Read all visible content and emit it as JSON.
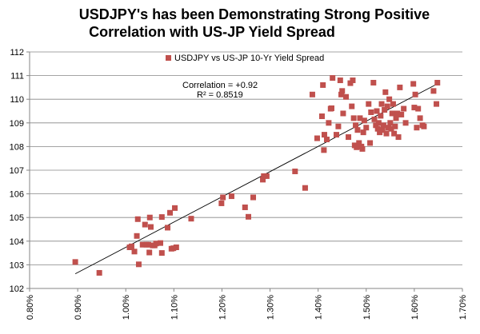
{
  "chart_data": {
    "type": "scatter",
    "title_lines": [
      "USDJPY's has been Demonstrating Strong Positive",
      "Correlation with US-JP Yield Spread"
    ],
    "legend_label": "USDJPY vs US-JP 10-Yr Yield Spread",
    "annotation_lines": [
      "Correlation = +0.92",
      "R² = 0.8519"
    ],
    "xlim": [
      0.008,
      0.017
    ],
    "ylim": [
      102,
      112
    ],
    "x_ticks": [
      0.008,
      0.009,
      0.01,
      0.011,
      0.012,
      0.013,
      0.014,
      0.015,
      0.016,
      0.017
    ],
    "x_tick_labels": [
      "0.80%",
      "0.90%",
      "1.00%",
      "1.10%",
      "1.20%",
      "1.30%",
      "1.40%",
      "1.50%",
      "1.60%",
      "1.70%"
    ],
    "y_ticks": [
      102,
      103,
      104,
      105,
      106,
      107,
      108,
      109,
      110,
      111,
      112
    ],
    "y_tick_labels": [
      "102",
      "103",
      "104",
      "105",
      "106",
      "107",
      "108",
      "109",
      "110",
      "111",
      "112"
    ],
    "trendline": {
      "x": [
        0.00895,
        0.01645
      ],
      "y": [
        102.62,
        110.62
      ]
    },
    "colors": {
      "marker": "#c0504d",
      "grid": "#868686",
      "axis": "#868686",
      "trend": "#000000"
    },
    "points": [
      [
        0.00895,
        103.12
      ],
      [
        0.00945,
        102.66
      ],
      [
        0.01008,
        103.74
      ],
      [
        0.01012,
        103.78
      ],
      [
        0.01018,
        103.56
      ],
      [
        0.01023,
        104.22
      ],
      [
        0.01025,
        104.93
      ],
      [
        0.01027,
        103.02
      ],
      [
        0.01035,
        103.85
      ],
      [
        0.0104,
        104.7
      ],
      [
        0.01043,
        103.85
      ],
      [
        0.01047,
        103.85
      ],
      [
        0.01049,
        103.52
      ],
      [
        0.0105,
        105.0
      ],
      [
        0.01052,
        104.6
      ],
      [
        0.01056,
        103.82
      ],
      [
        0.0106,
        103.82
      ],
      [
        0.01063,
        103.9
      ],
      [
        0.01072,
        103.92
      ],
      [
        0.01075,
        105.02
      ],
      [
        0.01075,
        103.5
      ],
      [
        0.01087,
        104.57
      ],
      [
        0.01092,
        105.2
      ],
      [
        0.01095,
        103.68
      ],
      [
        0.01099,
        103.7
      ],
      [
        0.01102,
        105.4
      ],
      [
        0.01105,
        103.74
      ],
      [
        0.01136,
        104.95
      ],
      [
        0.01199,
        105.6
      ],
      [
        0.01202,
        105.85
      ],
      [
        0.0122,
        105.9
      ],
      [
        0.01248,
        105.43
      ],
      [
        0.01255,
        105.03
      ],
      [
        0.01265,
        105.85
      ],
      [
        0.01285,
        106.6
      ],
      [
        0.01287,
        106.75
      ],
      [
        0.01293,
        106.75
      ],
      [
        0.01352,
        106.95
      ],
      [
        0.01373,
        106.25
      ],
      [
        0.01388,
        110.2
      ],
      [
        0.01398,
        108.35
      ],
      [
        0.01408,
        109.28
      ],
      [
        0.0141,
        110.6
      ],
      [
        0.01412,
        107.85
      ],
      [
        0.01413,
        108.5
      ],
      [
        0.01418,
        108.3
      ],
      [
        0.01422,
        109.0
      ],
      [
        0.01426,
        109.6
      ],
      [
        0.01428,
        109.62
      ],
      [
        0.0143,
        110.9
      ],
      [
        0.01438,
        108.5
      ],
      [
        0.01442,
        108.85
      ],
      [
        0.01446,
        110.8
      ],
      [
        0.01448,
        110.2
      ],
      [
        0.0145,
        110.35
      ],
      [
        0.01452,
        109.4
      ],
      [
        0.01458,
        110.1
      ],
      [
        0.01463,
        108.4
      ],
      [
        0.01467,
        110.68
      ],
      [
        0.0147,
        109.7
      ],
      [
        0.01472,
        110.8
      ],
      [
        0.01474,
        109.2
      ],
      [
        0.01476,
        108.05
      ],
      [
        0.01478,
        108.9
      ],
      [
        0.0148,
        107.97
      ],
      [
        0.01482,
        108.7
      ],
      [
        0.01485,
        108.15
      ],
      [
        0.01487,
        109.2
      ],
      [
        0.0149,
        108.0
      ],
      [
        0.01492,
        107.9
      ],
      [
        0.01494,
        108.6
      ],
      [
        0.01496,
        109.1
      ],
      [
        0.015,
        108.8
      ],
      [
        0.01505,
        109.8
      ],
      [
        0.01508,
        108.15
      ],
      [
        0.0151,
        109.45
      ],
      [
        0.01515,
        110.7
      ],
      [
        0.01517,
        109.15
      ],
      [
        0.0152,
        108.9
      ],
      [
        0.01522,
        109.5
      ],
      [
        0.01524,
        108.75
      ],
      [
        0.01526,
        109.0
      ],
      [
        0.01528,
        108.6
      ],
      [
        0.0153,
        109.3
      ],
      [
        0.01532,
        109.8
      ],
      [
        0.01534,
        108.7
      ],
      [
        0.01536,
        108.9
      ],
      [
        0.01538,
        109.55
      ],
      [
        0.0154,
        110.3
      ],
      [
        0.01542,
        108.55
      ],
      [
        0.01544,
        109.7
      ],
      [
        0.01546,
        108.8
      ],
      [
        0.01548,
        110.0
      ],
      [
        0.0155,
        109.0
      ],
      [
        0.01552,
        108.75
      ],
      [
        0.01554,
        109.4
      ],
      [
        0.01556,
        109.8
      ],
      [
        0.01558,
        108.55
      ],
      [
        0.0156,
        108.85
      ],
      [
        0.01562,
        109.2
      ],
      [
        0.01565,
        109.4
      ],
      [
        0.01567,
        108.4
      ],
      [
        0.0157,
        110.5
      ],
      [
        0.01573,
        109.35
      ],
      [
        0.01578,
        109.6
      ],
      [
        0.01582,
        109.0
      ],
      [
        0.01598,
        110.65
      ],
      [
        0.016,
        109.65
      ],
      [
        0.01602,
        110.2
      ],
      [
        0.01605,
        108.8
      ],
      [
        0.01608,
        109.6
      ],
      [
        0.01612,
        109.2
      ],
      [
        0.01617,
        108.9
      ],
      [
        0.0162,
        108.85
      ],
      [
        0.0164,
        110.35
      ],
      [
        0.01646,
        109.8
      ],
      [
        0.01648,
        110.7
      ]
    ]
  }
}
